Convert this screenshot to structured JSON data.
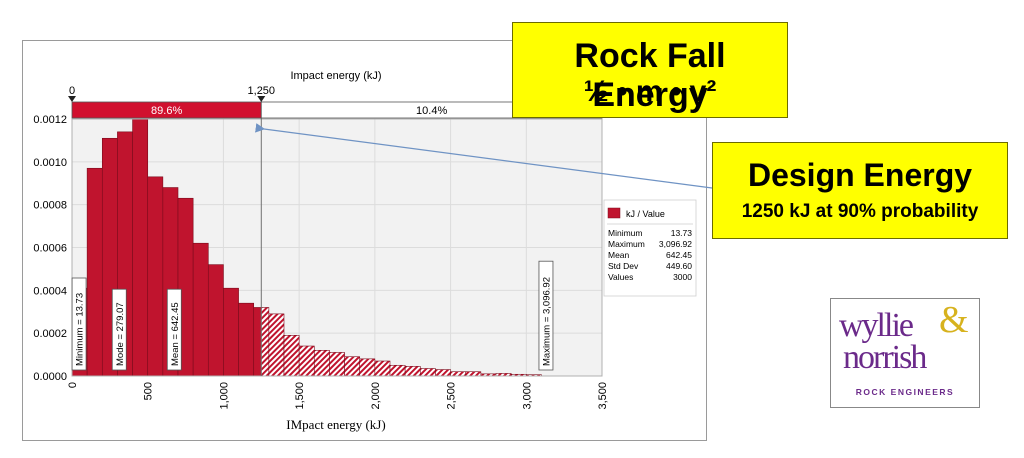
{
  "chart_data": {
    "type": "bar",
    "xlabel": "IMpact energy (kJ)",
    "top_axis_label": "Impact energy (kJ)",
    "xlim": [
      0,
      3500
    ],
    "ylim": [
      0,
      0.0012
    ],
    "bin_width": 100,
    "bin_starts": [
      0,
      100,
      200,
      300,
      400,
      500,
      600,
      700,
      800,
      900,
      1000,
      1100,
      1200,
      1300,
      1400,
      1500,
      1600,
      1700,
      1800,
      1900,
      2000,
      2100,
      2200,
      2300,
      2400,
      2500,
      2600,
      2700,
      2800,
      2900,
      3000
    ],
    "values": [
      0.00041,
      0.00097,
      0.00111,
      0.00114,
      0.0012,
      0.00093,
      0.00088,
      0.00083,
      0.00062,
      0.00052,
      0.00041,
      0.00034,
      0.00032,
      0.00029,
      0.00019,
      0.00014,
      0.00012,
      0.00011,
      9e-05,
      8e-05,
      7e-05,
      5e-05,
      4.5e-05,
      3.5e-05,
      3e-05,
      2e-05,
      2e-05,
      1e-05,
      1.2e-05,
      8e-06,
      6e-06
    ],
    "x_ticks": [
      "0",
      "500",
      "1,000",
      "1,500",
      "2,000",
      "2,500",
      "3,000",
      "3,500"
    ],
    "y_ticks": [
      "0.0000",
      "0.0002",
      "0.0004",
      "0.0006",
      "0.0008",
      "0.0010",
      "0.0012"
    ],
    "grid": true,
    "threshold": {
      "value": 1250,
      "label": "1,250",
      "start_label": "0",
      "left_pct": "89.6%",
      "right_pct": "10.4%"
    },
    "markers": [
      {
        "label": "Minimum = 13.73",
        "x": 13.73
      },
      {
        "label": "Mode = 279.07",
        "x": 279.07
      },
      {
        "label": "Mean = 642.45",
        "x": 642.45
      },
      {
        "label": "Maximum = 3,096.92",
        "x": 3096.92
      }
    ],
    "legend": {
      "placement": "right",
      "series_label": "kJ / Value",
      "stats": [
        {
          "name": "Minimum",
          "value": "13.73"
        },
        {
          "name": "Maximum",
          "value": "3,096.92"
        },
        {
          "name": "Mean",
          "value": "642.45"
        },
        {
          "name": "Std Dev",
          "value": "449.60"
        },
        {
          "name": "Values",
          "value": "3000"
        }
      ]
    },
    "colors": {
      "bar": "#c0142e",
      "bar_edge": "#7a0b1c",
      "band": "#d1102e",
      "plot_bg": "#f2f2f2",
      "grid": "#dcdcdc",
      "arrow": "#6f93c4"
    }
  },
  "callouts": {
    "rock_title": "Rock Fall Energy",
    "rock_formula": "½ • m • v²",
    "design_title": "Design Energy",
    "design_sub": "1250 kJ at 90% probability",
    "fill": "#ffff00"
  },
  "logo": {
    "word1": "wyllie",
    "ampersand": "&",
    "word2": "norrish",
    "tagline": "ROCK ENGINEERS",
    "color": "#6b2a8a",
    "amp_color": "#d7b21e"
  }
}
